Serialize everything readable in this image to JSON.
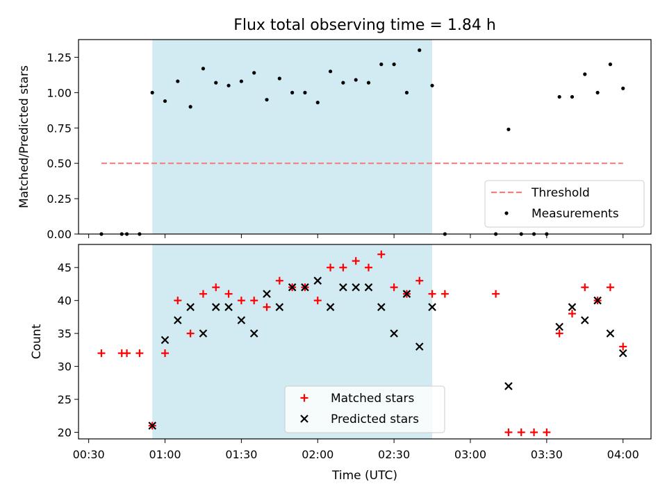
{
  "chart_data": [
    {
      "type": "scatter",
      "title": "Flux total observing time = 1.84 h",
      "ylabel": "Matched/Predicted stars",
      "xlabel": "",
      "ylim": [
        0,
        1.375
      ],
      "y_ticks": [
        "0.00",
        "0.25",
        "0.50",
        "0.75",
        "1.00",
        "1.25"
      ],
      "y_tick_values": [
        0,
        0.25,
        0.5,
        0.75,
        1.0,
        1.25
      ],
      "grid": false,
      "legend_position": "lower right",
      "highlight_span": {
        "x": [
          "00:55",
          "02:45"
        ],
        "color": "#add8e6"
      },
      "series": [
        {
          "name": "Threshold",
          "kind": "dashed-line",
          "color": "#f08080",
          "x": [
            "00:35",
            "04:00"
          ],
          "y": [
            0.5,
            0.5
          ]
        },
        {
          "name": "Measurements",
          "kind": "dot",
          "color": "#000000",
          "x": [
            "00:35",
            "00:43",
            "00:45",
            "00:50",
            "00:55",
            "01:00",
            "01:05",
            "01:10",
            "01:15",
            "01:20",
            "01:25",
            "01:30",
            "01:35",
            "01:40",
            "01:45",
            "01:50",
            "01:55",
            "02:00",
            "02:05",
            "02:10",
            "02:15",
            "02:20",
            "02:25",
            "02:30",
            "02:35",
            "02:40",
            "02:45",
            "02:50",
            "03:10",
            "03:15",
            "03:20",
            "03:25",
            "03:30",
            "03:35",
            "03:40",
            "03:45",
            "03:50",
            "03:55",
            "04:00"
          ],
          "y": [
            0,
            0,
            0,
            0,
            1.0,
            0.94,
            1.08,
            0.9,
            1.17,
            1.07,
            1.05,
            1.08,
            1.14,
            0.95,
            1.1,
            1.0,
            1.0,
            0.93,
            1.15,
            1.07,
            1.09,
            1.07,
            1.2,
            1.2,
            1.0,
            1.3,
            1.05,
            0,
            0,
            0.74,
            0,
            0,
            0,
            0.97,
            0.97,
            1.13,
            1.0,
            1.2,
            1.03
          ]
        }
      ]
    },
    {
      "type": "scatter",
      "title": "",
      "ylabel": "Count",
      "xlabel": "Time (UTC)",
      "xlim": [
        "00:26",
        "04:11"
      ],
      "x_ticks": [
        "00:30",
        "01:00",
        "01:30",
        "02:00",
        "02:30",
        "03:00",
        "03:30",
        "04:00"
      ],
      "ylim": [
        19,
        48.5
      ],
      "y_ticks": [
        "20",
        "25",
        "30",
        "35",
        "40",
        "45"
      ],
      "y_tick_values": [
        20,
        25,
        30,
        35,
        40,
        45
      ],
      "grid": false,
      "legend_position": "lower center",
      "highlight_span": {
        "x": [
          "00:55",
          "02:45"
        ],
        "color": "#add8e6"
      },
      "series": [
        {
          "name": "Matched stars",
          "kind": "plus",
          "color": "#ff0000",
          "x": [
            "00:35",
            "00:43",
            "00:45",
            "00:50",
            "00:55",
            "01:00",
            "01:05",
            "01:10",
            "01:15",
            "01:20",
            "01:25",
            "01:30",
            "01:35",
            "01:40",
            "01:45",
            "01:50",
            "01:55",
            "02:00",
            "02:05",
            "02:10",
            "02:15",
            "02:20",
            "02:25",
            "02:30",
            "02:35",
            "02:40",
            "02:45",
            "02:50",
            "03:10",
            "03:15",
            "03:20",
            "03:25",
            "03:30",
            "03:35",
            "03:40",
            "03:45",
            "03:50",
            "03:55",
            "04:00"
          ],
          "y": [
            32,
            32,
            32,
            32,
            21,
            32,
            40,
            35,
            41,
            42,
            41,
            40,
            40,
            39,
            43,
            42,
            42,
            40,
            45,
            45,
            46,
            45,
            47,
            42,
            41,
            43,
            41,
            41,
            41,
            20,
            20,
            20,
            20,
            35,
            38,
            42,
            40,
            42,
            33
          ]
        },
        {
          "name": "Predicted stars",
          "kind": "x",
          "color": "#000000",
          "x": [
            "00:55",
            "01:00",
            "01:05",
            "01:10",
            "01:15",
            "01:20",
            "01:25",
            "01:30",
            "01:35",
            "01:40",
            "01:45",
            "01:50",
            "01:55",
            "02:00",
            "02:05",
            "02:10",
            "02:15",
            "02:20",
            "02:25",
            "02:30",
            "02:35",
            "02:40",
            "02:45",
            "03:15",
            "03:35",
            "03:40",
            "03:45",
            "03:50",
            "03:55",
            "04:00"
          ],
          "y": [
            21,
            34,
            37,
            39,
            35,
            39,
            39,
            37,
            35,
            41,
            39,
            42,
            42,
            43,
            39,
            42,
            42,
            42,
            39,
            35,
            41,
            33,
            39,
            27,
            36,
            39,
            37,
            40,
            35,
            32
          ]
        }
      ]
    }
  ]
}
